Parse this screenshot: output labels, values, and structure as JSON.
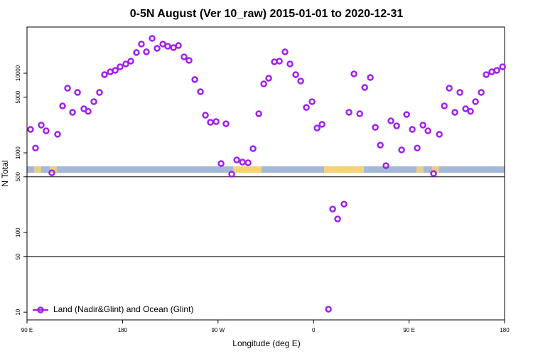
{
  "chart_data": {
    "type": "scatter",
    "title": "0-5N August (Ver 10_raw)   2015-01-01 to 2020-12-31",
    "x_label": "Longitude (deg E)",
    "y_label": "N Total",
    "log_y": true,
    "xlim": [
      90,
      540
    ],
    "xticks": [
      {
        "value": 90,
        "label": "90 E"
      },
      180,
      {
        "value": 270,
        "label": "90 W"
      },
      {
        "value": 360,
        "label": "0"
      },
      {
        "value": 450,
        "label": "90 E"
      },
      {
        "value": 540,
        "label": "180"
      }
    ],
    "ylim": [
      8,
      38000
    ],
    "yticks": [
      10,
      50,
      100,
      500,
      1000,
      5000,
      10000
    ],
    "reference_lines": [
      500,
      50
    ],
    "legend_position": "bottom-left",
    "series": [
      {
        "name": "Land (Nadir&Glint) and Ocean (Glint)",
        "color": "#a020f0",
        "x": [
          93.3,
          98,
          103.4,
          108,
          113.4,
          118.8,
          123.5,
          128.2,
          132.9,
          137.6,
          143.6,
          147.6,
          153,
          158.3,
          163,
          168.4,
          173.1,
          177.7,
          183.1,
          187.8,
          193.1,
          197.8,
          202.5,
          207.9,
          212.6,
          218,
          222.6,
          228,
          232.7,
          238,
          242.7,
          248.1,
          253.4,
          258.1,
          262.8,
          268.2,
          272.9,
          277.5,
          282.9,
          287.6,
          293,
          298.3,
          303,
          308.4,
          313.1,
          317.7,
          323.1,
          327.8,
          333.1,
          337.8,
          343.2,
          347.9,
          353.2,
          358.6,
          363.3,
          368,
          374,
          378,
          382.7,
          388.7,
          393.4,
          398.1,
          403.5,
          408.2,
          413.5,
          418.2,
          422.9,
          428.2,
          432.9,
          438.3,
          443,
          447.7,
          453,
          457.7,
          463.1,
          467.8,
          473.1,
          478.5,
          483.2,
          487.9,
          493.2,
          497.9,
          503.3,
          507.9,
          512.6,
          518,
          522.7,
          528,
          532.7,
          538.1
        ],
        "values": [
          1970,
          1150,
          2230,
          1890,
          562,
          1710,
          3880,
          6490,
          3230,
          5740,
          3580,
          3320,
          4390,
          5740,
          9600,
          10400,
          10860,
          12030,
          13070,
          14190,
          18160,
          23230,
          18540,
          27380,
          20530,
          23230,
          21830,
          20940,
          22280,
          16030,
          14480,
          8320,
          5860,
          2970,
          2420,
          2470,
          735,
          2320,
          540,
          814,
          766,
          750,
          1130,
          3100,
          7340,
          8660,
          13900,
          14190,
          18540,
          13070,
          9600,
          7980,
          3720,
          4390,
          2050,
          2280,
          10.9,
          197,
          148,
          227,
          3230,
          9800,
          3100,
          6620,
          8840,
          2090,
          1250,
          691,
          2520,
          2180,
          1090,
          3030,
          1970,
          1150,
          2230,
          1890,
          550,
          1710,
          3880,
          6490,
          3230,
          5740,
          3580,
          3320,
          4390,
          5740,
          9600,
          10400,
          10860,
          12030
        ]
      }
    ]
  }
}
